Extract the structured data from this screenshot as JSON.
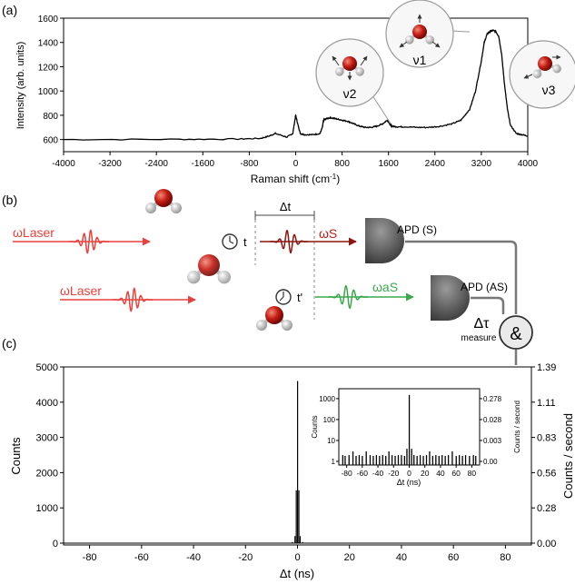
{
  "panels": {
    "a": {
      "label": "(a)",
      "mode_labels": [
        "ν2",
        "ν1",
        "ν3"
      ]
    },
    "b": {
      "label": "(b)",
      "laser1": "ωLaser",
      "laser2": "ωLaser",
      "delta_t": "Δt",
      "t_label": "t",
      "tprime_label": "t'",
      "omega_s": "ωS",
      "omega_as": "ωaS",
      "apd_s": "APD (S)",
      "apd_as": "APD (AS)",
      "delta_tau": "Δτ",
      "measure": "measure",
      "coincidence": "&"
    },
    "c": {
      "label": "(c)"
    }
  },
  "chart_data": [
    {
      "type": "line",
      "xlabel": "Raman shift (cm-1)",
      "ylabel": "Intensity (arb. units)",
      "xlim": [
        -4000,
        4000
      ],
      "ylim": [
        500,
        1600
      ],
      "xticks": [
        -4000,
        -3200,
        -2400,
        -1600,
        -800,
        0,
        800,
        1600,
        2400,
        3200,
        4000
      ],
      "yticks": [
        600,
        800,
        1000,
        1200,
        1400,
        1600
      ],
      "x": [
        -4000,
        -2000,
        -1000,
        -600,
        -450,
        -350,
        -150,
        -50,
        0,
        40,
        80,
        150,
        300,
        420,
        460,
        480,
        520,
        600,
        700,
        800,
        900,
        1000,
        1100,
        1200,
        1300,
        1400,
        1500,
        1580,
        1620,
        1660,
        1750,
        1900,
        2100,
        2300,
        2500,
        2700,
        2850,
        3000,
        3100,
        3200,
        3250,
        3300,
        3350,
        3400,
        3450,
        3500,
        3550,
        3600,
        3650,
        3700,
        3800,
        3900,
        4000
      ],
      "y": [
        600,
        602,
        604,
        610,
        630,
        650,
        620,
        650,
        800,
        720,
        650,
        640,
        640,
        650,
        700,
        760,
        770,
        780,
        770,
        760,
        750,
        730,
        710,
        700,
        700,
        710,
        730,
        760,
        730,
        710,
        705,
        705,
        700,
        700,
        710,
        730,
        760,
        850,
        1000,
        1250,
        1400,
        1470,
        1490,
        1500,
        1490,
        1450,
        1300,
        1050,
        850,
        720,
        650,
        640,
        630
      ]
    },
    {
      "type": "bar",
      "xlabel": "Δt (ns)",
      "ylabel": "Counts",
      "y2label": "Counts / second",
      "xlim": [
        -90,
        90
      ],
      "ylim": [
        0,
        5000
      ],
      "xticks": [
        -80,
        -60,
        -40,
        -20,
        0,
        20,
        40,
        60,
        80
      ],
      "yticks": [
        0,
        1000,
        2000,
        3000,
        4000,
        5000
      ],
      "y2ticks": [
        "0.00",
        "0.28",
        "0.56",
        "0.83",
        "1.11",
        "1.39"
      ],
      "x": [
        -2,
        -1,
        -0.5,
        0,
        0.5,
        1,
        2
      ],
      "values": [
        30,
        200,
        1500,
        4600,
        1500,
        200,
        30
      ]
    },
    {
      "type": "bar",
      "inset": true,
      "xlabel": "Δt (ns)",
      "ylabel": "Counts",
      "y2label": "Counts / second",
      "scale": "log",
      "xlim": [
        -90,
        90
      ],
      "xticks": [
        -80,
        -60,
        -40,
        -20,
        0,
        20,
        40,
        60,
        80
      ],
      "yticks": [
        "1",
        "10",
        "100",
        "1000"
      ],
      "y2ticks": [
        "0.00",
        "0.003",
        "0.028",
        "0.278"
      ],
      "x": [
        -85,
        -82,
        -77,
        -72,
        -68,
        -64,
        -60,
        -55,
        -50,
        -46,
        -42,
        -38,
        -34,
        -30,
        -26,
        -22,
        -18,
        -14,
        -10,
        -6,
        -3,
        0,
        3,
        6,
        10,
        14,
        18,
        22,
        26,
        30,
        34,
        38,
        42,
        46,
        50,
        55,
        60,
        64,
        68,
        72,
        77,
        82,
        85
      ],
      "values": [
        2,
        1,
        2,
        3,
        1,
        2,
        1,
        3,
        2,
        1,
        2,
        1,
        2,
        1,
        3,
        2,
        1,
        2,
        2,
        1,
        4,
        1500,
        4,
        2,
        1,
        2,
        1,
        2,
        3,
        1,
        2,
        1,
        2,
        1,
        2,
        3,
        1,
        2,
        1,
        2,
        1,
        2,
        1
      ]
    }
  ]
}
